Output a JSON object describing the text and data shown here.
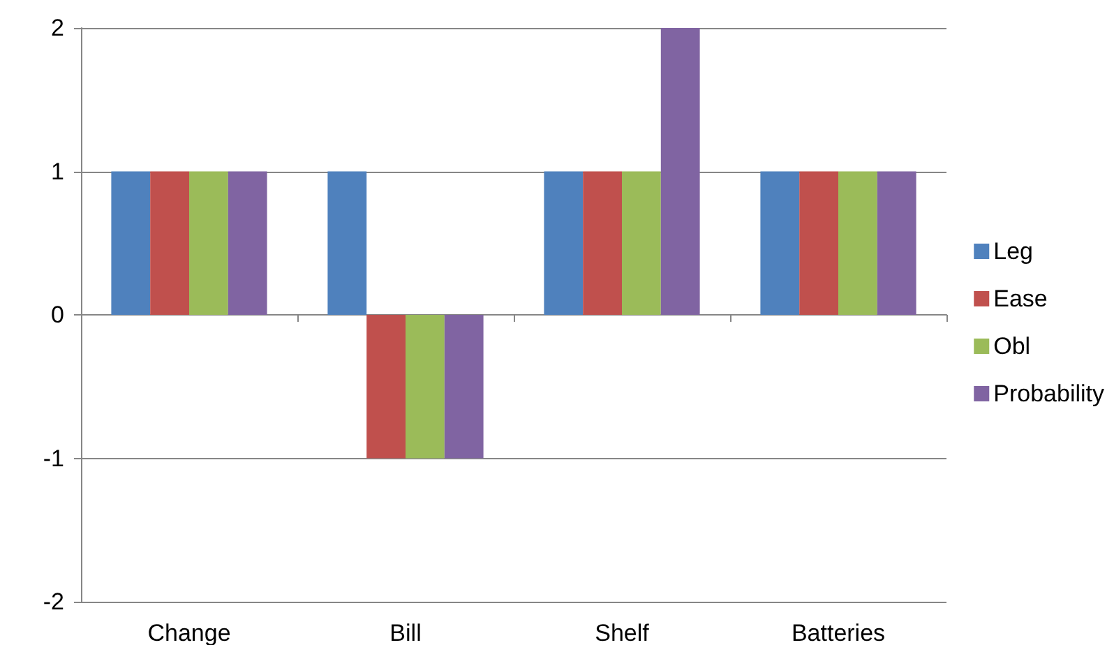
{
  "chart_data": {
    "type": "bar",
    "categories": [
      "Change",
      "Bill",
      "Shelf",
      "Batteries"
    ],
    "series": [
      {
        "name": "Leg",
        "color": "#4f81bd",
        "values": [
          1,
          1,
          1,
          1
        ]
      },
      {
        "name": "Ease",
        "color": "#c0504d",
        "values": [
          1,
          -1,
          1,
          1
        ]
      },
      {
        "name": "Obl",
        "color": "#9bbb59",
        "values": [
          1,
          -1,
          1,
          1
        ]
      },
      {
        "name": "Probability",
        "color": "#8064a2",
        "values": [
          1,
          -1,
          2,
          1
        ]
      }
    ],
    "ylim": [
      -2,
      2
    ],
    "yticks": [
      -2,
      -1,
      0,
      1,
      2
    ],
    "grid": "y",
    "legend": "right"
  }
}
